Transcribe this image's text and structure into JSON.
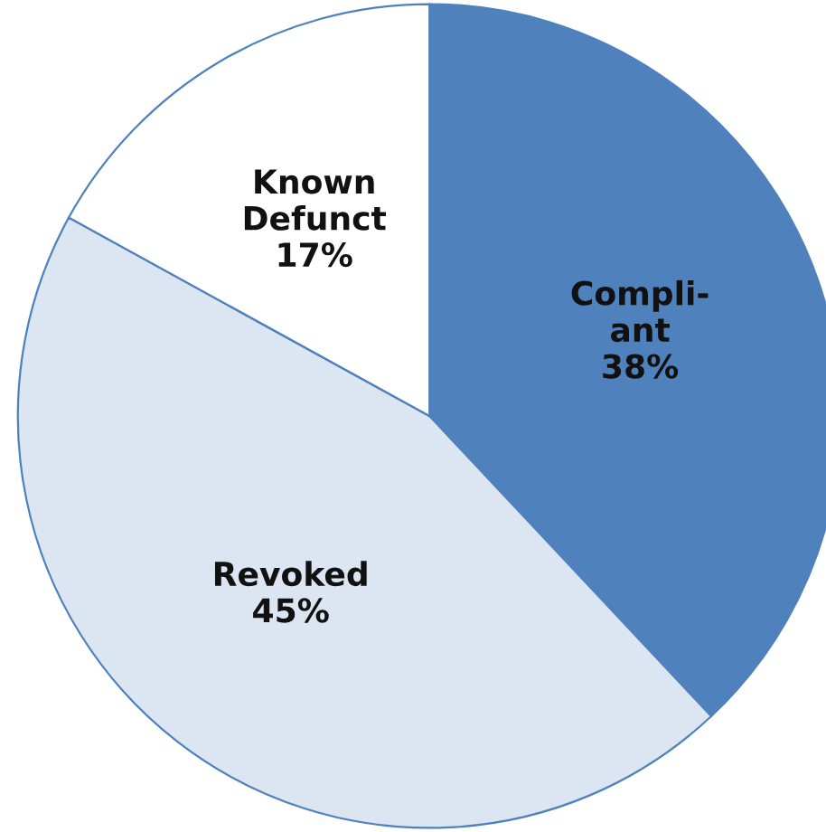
{
  "chart_data": {
    "type": "pie",
    "categories": [
      "Compli-\nant",
      "Revoked",
      "Known\nDefunct"
    ],
    "values": [
      38,
      45,
      17
    ],
    "value_labels": [
      "38%",
      "45%",
      "17%"
    ],
    "colors": [
      "#4f81bd",
      "#dce6f2",
      "#ffffff"
    ],
    "legend": false
  }
}
